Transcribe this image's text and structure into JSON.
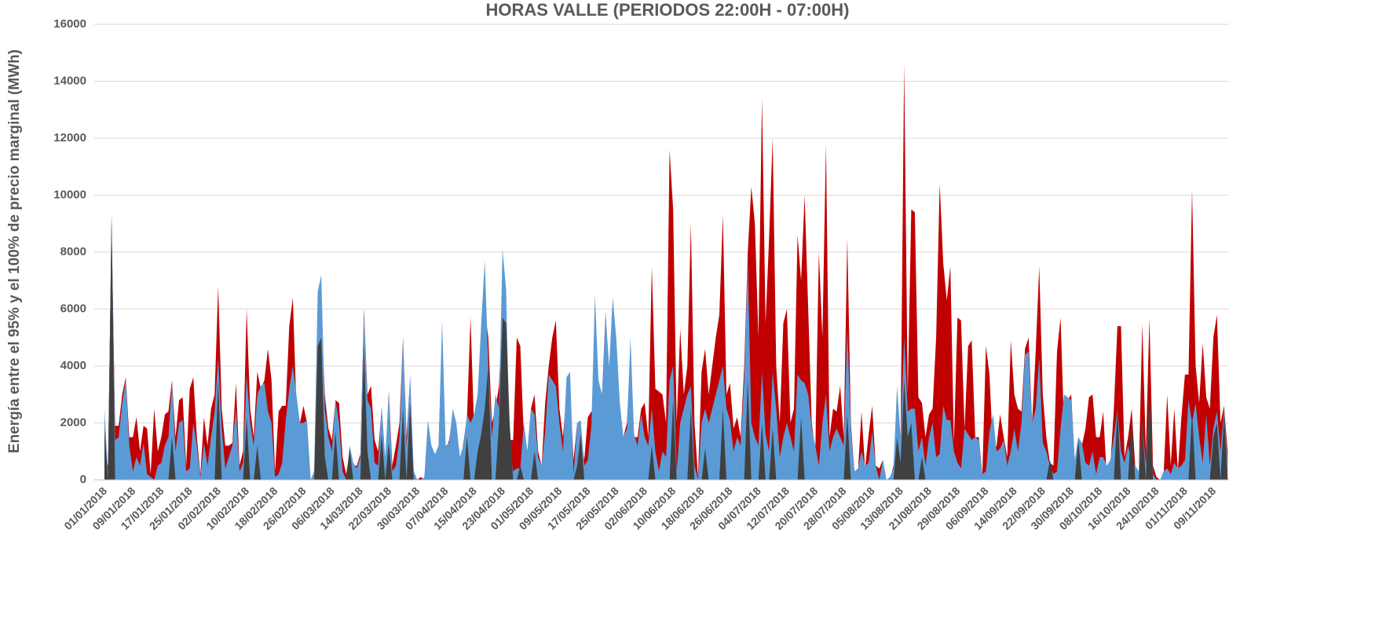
{
  "chart_data": {
    "type": "area",
    "title": "HORAS VALLE (PERIODOS 22:00H - 07:00H)",
    "y_label": "Energía entre el 95% y el 100% de precio marginal (MWh)",
    "ylim": [
      0,
      16000
    ],
    "yticks": [
      0,
      2000,
      4000,
      6000,
      8000,
      10000,
      12000,
      14000,
      16000
    ],
    "grid": true,
    "categories": [
      "01/01/2018",
      null,
      null,
      null,
      null,
      null,
      null,
      null,
      "09/01/2018",
      null,
      null,
      null,
      null,
      null,
      null,
      null,
      "17/01/2018",
      null,
      null,
      null,
      null,
      null,
      null,
      null,
      "25/01/2018",
      null,
      null,
      null,
      null,
      null,
      null,
      null,
      "02/02/2018",
      null,
      null,
      null,
      null,
      null,
      null,
      null,
      "10/02/2018",
      null,
      null,
      null,
      null,
      null,
      null,
      null,
      "18/02/2018",
      null,
      null,
      null,
      null,
      null,
      null,
      null,
      "26/02/2018",
      null,
      null,
      null,
      null,
      null,
      null,
      null,
      "06/03/2018",
      null,
      null,
      null,
      null,
      null,
      null,
      null,
      "14/03/2018",
      null,
      null,
      null,
      null,
      null,
      null,
      null,
      "22/03/2018",
      null,
      null,
      null,
      null,
      null,
      null,
      null,
      "30/03/2018",
      null,
      null,
      null,
      null,
      null,
      null,
      null,
      "07/04/2018",
      null,
      null,
      null,
      null,
      null,
      null,
      null,
      "15/04/2018",
      null,
      null,
      null,
      null,
      null,
      null,
      null,
      "23/04/2018",
      null,
      null,
      null,
      null,
      null,
      null,
      null,
      "01/05/2018",
      null,
      null,
      null,
      null,
      null,
      null,
      null,
      "09/05/2018",
      null,
      null,
      null,
      null,
      null,
      null,
      null,
      "17/05/2018",
      null,
      null,
      null,
      null,
      null,
      null,
      null,
      "25/05/2018",
      null,
      null,
      null,
      null,
      null,
      null,
      null,
      "02/06/2018",
      null,
      null,
      null,
      null,
      null,
      null,
      null,
      "10/06/2018",
      null,
      null,
      null,
      null,
      null,
      null,
      null,
      "18/06/2018",
      null,
      null,
      null,
      null,
      null,
      null,
      null,
      "26/06/2018",
      null,
      null,
      null,
      null,
      null,
      null,
      null,
      "04/07/2018",
      null,
      null,
      null,
      null,
      null,
      null,
      null,
      "12/07/2018",
      null,
      null,
      null,
      null,
      null,
      null,
      null,
      "20/07/2018",
      null,
      null,
      null,
      null,
      null,
      null,
      null,
      "28/07/2018",
      null,
      null,
      null,
      null,
      null,
      null,
      null,
      "05/08/2018",
      null,
      null,
      null,
      null,
      null,
      null,
      null,
      "13/08/2018",
      null,
      null,
      null,
      null,
      null,
      null,
      null,
      "21/08/2018",
      null,
      null,
      null,
      null,
      null,
      null,
      null,
      "29/08/2018",
      null,
      null,
      null,
      null,
      null,
      null,
      null,
      "06/09/2018",
      null,
      null,
      null,
      null,
      null,
      null,
      null,
      "14/09/2018",
      null,
      null,
      null,
      null,
      null,
      null,
      null,
      "22/09/2018",
      null,
      null,
      null,
      null,
      null,
      null,
      null,
      "30/09/2018",
      null,
      null,
      null,
      null,
      null,
      null,
      null,
      "08/10/2018",
      null,
      null,
      null,
      null,
      null,
      null,
      null,
      "16/10/2018",
      null,
      null,
      null,
      null,
      null,
      null,
      null,
      "24/10/2018",
      null,
      null,
      null,
      null,
      null,
      null,
      null,
      "01/11/2018",
      null,
      null,
      null,
      null,
      null,
      null,
      null,
      "09/11/2018",
      null,
      null,
      null,
      null
    ],
    "series": [
      {
        "color": "#c00000",
        "values": [
          1000,
          500,
          9000,
          1900,
          1900,
          3000,
          3600,
          1500,
          1500,
          2200,
          1000,
          1900,
          1800,
          200,
          2500,
          1000,
          1500,
          2300,
          2400,
          3500,
          1500,
          2800,
          2900,
          500,
          3200,
          3600,
          1500,
          200,
          2200,
          1200,
          2500,
          3000,
          6800,
          2500,
          1200,
          1200,
          1300,
          3400,
          500,
          1000,
          6000,
          2500,
          1500,
          3800,
          3200,
          3500,
          4600,
          3500,
          300,
          2400,
          2600,
          2600,
          5400,
          6400,
          2600,
          2000,
          2600,
          2000,
          0,
          0,
          6000,
          6000,
          3000,
          1800,
          1400,
          2800,
          2700,
          800,
          200,
          1000,
          500,
          500,
          900,
          6000,
          3000,
          3300,
          1400,
          1000,
          2500,
          500,
          3100,
          500,
          1200,
          2000,
          5000,
          1500,
          3600,
          300,
          0,
          100,
          0,
          1000,
          1000,
          800,
          1200,
          5000,
          1000,
          1400,
          2300,
          1500,
          400,
          1300,
          2200,
          5700,
          1800,
          2800,
          3500,
          6000,
          5000,
          2000,
          2500,
          3300,
          6000,
          5000,
          1400,
          1400,
          5000,
          4700,
          1500,
          1000,
          2500,
          3000,
          1000,
          500,
          2700,
          4000,
          5000,
          5600,
          2500,
          1500,
          3000,
          3000,
          700,
          2000,
          1500,
          700,
          2200,
          2400,
          2300,
          3000,
          3000,
          5900,
          3500,
          4500,
          4000,
          2000,
          1500,
          2000,
          4500,
          1500,
          1500,
          2500,
          2700,
          1500,
          7500,
          3200,
          3100,
          3000,
          2000,
          11600,
          9500,
          2000,
          5300,
          3000,
          4000,
          9000,
          2000,
          100,
          3800,
          4600,
          3000,
          4000,
          5000,
          5800,
          9300,
          3000,
          3400,
          1800,
          2200,
          1500,
          4000,
          8000,
          10300,
          9000,
          5000,
          13400,
          5500,
          8500,
          12000,
          4000,
          2000,
          5500,
          6000,
          2000,
          2500,
          8600,
          7000,
          10000,
          6000,
          2000,
          1000,
          8000,
          5000,
          11800,
          1500,
          2500,
          2400,
          3300,
          1500,
          8500,
          2000,
          300,
          300,
          2400,
          400,
          1600,
          2600,
          500,
          400,
          700,
          0,
          0,
          500,
          2500,
          1500,
          14600,
          3000,
          9500,
          9400,
          2900,
          2700,
          1500,
          2300,
          2500,
          5000,
          10400,
          7600,
          6300,
          7500,
          1300,
          5700,
          5600,
          1800,
          4700,
          4900,
          1500,
          1500,
          200,
          4700,
          3700,
          1000,
          1200,
          2300,
          1500,
          800,
          4900,
          3000,
          2500,
          2400,
          4600,
          5000,
          2000,
          4500,
          7500,
          3000,
          1500,
          600,
          500,
          4500,
          5700,
          1800,
          2800,
          3000,
          600,
          1500,
          1200,
          1800,
          2900,
          3000,
          1500,
          1500,
          2400,
          100,
          500,
          2500,
          5400,
          5400,
          800,
          1500,
          2500,
          500,
          200,
          5500,
          1000,
          5700,
          500,
          100,
          0,
          200,
          3000,
          500,
          2500,
          300,
          2200,
          3700,
          3700,
          10200,
          4000,
          2700,
          4800,
          2900,
          2500,
          5000,
          5800,
          2000,
          2600,
          1000
        ]
      },
      {
        "color": "#5b9bd5",
        "values": [
          2500,
          200,
          9300,
          1400,
          1500,
          2700,
          3500,
          1200,
          300,
          800,
          500,
          1300,
          200,
          100,
          0,
          500,
          600,
          1200,
          1500,
          3400,
          1000,
          2000,
          2100,
          300,
          400,
          2000,
          1200,
          100,
          1300,
          500,
          1500,
          2400,
          4300,
          1800,
          400,
          800,
          1200,
          2500,
          300,
          600,
          3700,
          2000,
          1200,
          3000,
          3300,
          3400,
          2400,
          2000,
          100,
          200,
          600,
          2100,
          3200,
          4000,
          3000,
          2000,
          2000,
          2100,
          0,
          300,
          6600,
          7200,
          2500,
          1500,
          1000,
          2800,
          2000,
          300,
          0,
          1200,
          600,
          400,
          800,
          5900,
          2800,
          2500,
          600,
          500,
          2600,
          800,
          3000,
          300,
          500,
          1500,
          5000,
          1200,
          3700,
          300,
          0,
          0,
          100,
          2100,
          1200,
          900,
          1200,
          5600,
          1200,
          1300,
          2500,
          2000,
          800,
          1200,
          2300,
          2000,
          2300,
          3000,
          5500,
          7700,
          4000,
          1500,
          3000,
          2500,
          8100,
          6700,
          1200,
          300,
          400,
          400,
          2000,
          1000,
          2500,
          2300,
          800,
          500,
          1700,
          3700,
          3500,
          3300,
          2000,
          1000,
          3600,
          3800,
          200,
          2000,
          2100,
          500,
          700,
          1900,
          6500,
          3500,
          3000,
          5800,
          4000,
          6400,
          5000,
          2700,
          1500,
          1800,
          5000,
          1600,
          1200,
          2300,
          1500,
          1200,
          2500,
          1000,
          300,
          1000,
          800,
          3500,
          4000,
          300,
          2000,
          2500,
          3000,
          3300,
          500,
          0,
          2000,
          2500,
          2000,
          2500,
          3000,
          3500,
          4000,
          2500,
          2100,
          1000,
          1500,
          1200,
          3500,
          7700,
          2000,
          1500,
          1200,
          3800,
          1600,
          1000,
          3800,
          2500,
          800,
          1500,
          2000,
          1500,
          1000,
          3700,
          3500,
          3400,
          3000,
          1800,
          1200,
          500,
          2000,
          3000,
          1000,
          1500,
          1800,
          1500,
          1200,
          5300,
          1800,
          300,
          400,
          1000,
          500,
          600,
          1700,
          500,
          0,
          700,
          0,
          100,
          400,
          3300,
          1500,
          5000,
          2400,
          2500,
          2500,
          1000,
          1500,
          500,
          1500,
          2000,
          800,
          900,
          2600,
          2100,
          2100,
          1000,
          600,
          400,
          1800,
          1600,
          1400,
          1500,
          1400,
          200,
          300,
          1700,
          2300,
          1000,
          1100,
          1400,
          500,
          1000,
          1800,
          1000,
          2000,
          4400,
          4500,
          2000,
          2500,
          4300,
          1300,
          1000,
          500,
          200,
          300,
          1800,
          3000,
          2900,
          2800,
          700,
          1500,
          1300,
          600,
          500,
          1000,
          200,
          800,
          800,
          500,
          700,
          1500,
          2500,
          1000,
          600,
          1200,
          600,
          500,
          300,
          2000,
          500,
          3000,
          200,
          0,
          0,
          300,
          400,
          200,
          600,
          400,
          500,
          700,
          2800,
          2000,
          2700,
          1500,
          600,
          2300,
          500,
          1800,
          2400,
          1000,
          2500,
          500
        ]
      },
      {
        "color": "#404040",
        "values": [
          1800,
          0,
          9300,
          0,
          0,
          0,
          0,
          0,
          0,
          0,
          0,
          0,
          0,
          0,
          0,
          0,
          0,
          0,
          0,
          1500,
          0,
          0,
          0,
          0,
          0,
          0,
          0,
          0,
          0,
          0,
          0,
          0,
          3500,
          0,
          0,
          0,
          0,
          0,
          0,
          0,
          2200,
          0,
          0,
          1200,
          0,
          0,
          0,
          0,
          0,
          0,
          0,
          0,
          0,
          0,
          0,
          0,
          0,
          0,
          0,
          0,
          4700,
          5000,
          800,
          0,
          0,
          1700,
          0,
          0,
          0,
          1100,
          0,
          0,
          0,
          4700,
          1000,
          0,
          0,
          0,
          1600,
          0,
          1300,
          0,
          0,
          0,
          2500,
          0,
          2700,
          0,
          0,
          0,
          0,
          0,
          0,
          0,
          0,
          0,
          0,
          0,
          0,
          0,
          0,
          0,
          1500,
          0,
          0,
          1000,
          1600,
          2500,
          4000,
          0,
          0,
          2000,
          5700,
          5500,
          2000,
          0,
          0,
          500,
          0,
          0,
          0,
          1000,
          0,
          0,
          0,
          0,
          0,
          0,
          0,
          0,
          0,
          0,
          0,
          500,
          1600,
          0,
          0,
          0,
          0,
          0,
          0,
          0,
          0,
          0,
          0,
          0,
          0,
          0,
          0,
          0,
          0,
          0,
          0,
          0,
          1200,
          0,
          0,
          0,
          0,
          0,
          2800,
          0,
          0,
          0,
          0,
          2500,
          0,
          0,
          0,
          1100,
          0,
          0,
          0,
          0,
          2500,
          0,
          0,
          0,
          0,
          0,
          0,
          3500,
          0,
          0,
          0,
          2000,
          0,
          0,
          1800,
          0,
          0,
          0,
          0,
          0,
          0,
          0,
          2200,
          0,
          0,
          0,
          0,
          0,
          0,
          0,
          0,
          0,
          0,
          0,
          0,
          2300,
          0,
          0,
          0,
          0,
          0,
          0,
          0,
          0,
          0,
          0,
          0,
          0,
          0,
          1500,
          600,
          3500,
          1500,
          2000,
          0,
          0,
          800,
          0,
          0,
          0,
          0,
          0,
          0,
          0,
          0,
          0,
          0,
          0,
          0,
          0,
          0,
          0,
          0,
          0,
          0,
          0,
          0,
          0,
          0,
          0,
          0,
          0,
          0,
          0,
          0,
          0,
          0,
          0,
          0,
          0,
          0,
          0,
          700,
          0,
          0,
          0,
          0,
          0,
          0,
          0,
          1400,
          0,
          0,
          0,
          0,
          0,
          0,
          0,
          0,
          0,
          0,
          2500,
          0,
          0,
          0,
          2200,
          0,
          0,
          2000,
          0,
          3300,
          0,
          0,
          0,
          0,
          0,
          0,
          0,
          0,
          0,
          0,
          0,
          2400,
          0,
          0,
          0,
          0,
          0,
          1500,
          2000,
          0,
          2300,
          0
        ]
      }
    ]
  }
}
